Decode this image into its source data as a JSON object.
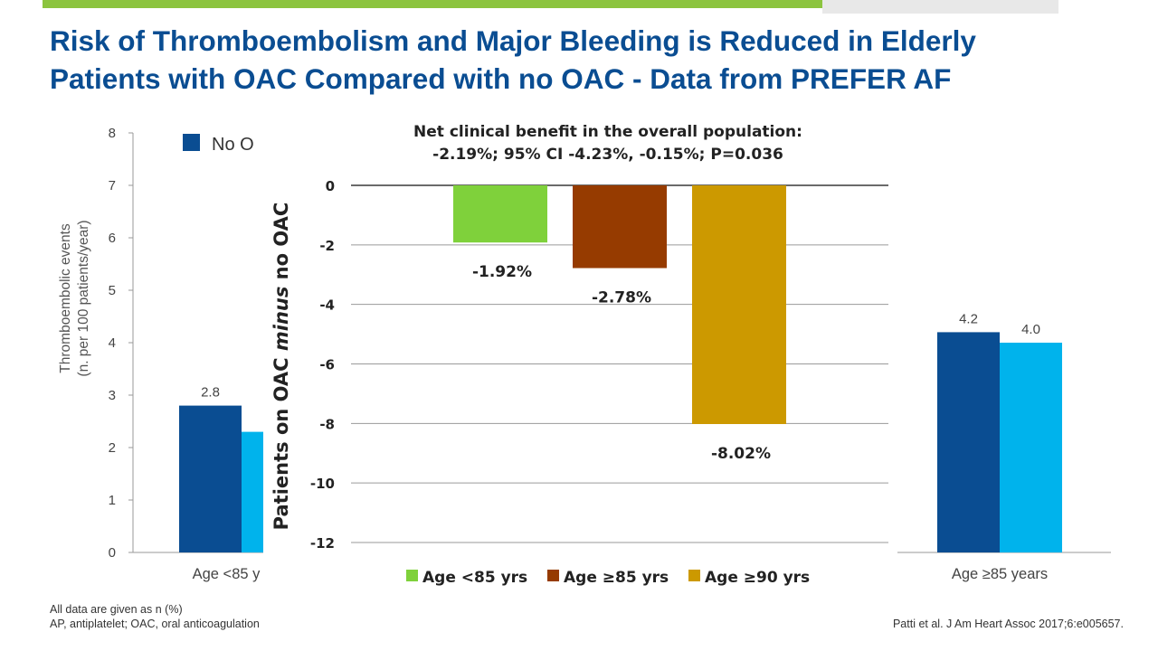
{
  "slide": {
    "title_line1": "Risk of Thromboembolism and Major Bleeding is Reduced in Elderly",
    "title_line2": "Patients with OAC Compared with no OAC - Data from PREFER AF",
    "footnote1": "All data are given as n (%)",
    "footnote2": "AP, antiplatelet; OAC, oral anticoagulation",
    "citation": "Patti et al. J Am Heart Assoc 2017;6:e005657."
  },
  "colors": {
    "title": "#0a4d92",
    "no_oac": "#0a4d92",
    "oac": "#00b3ec",
    "age_lt85": "#7fd13b",
    "age_ge85": "#963b00",
    "age_ge90": "#cc9900",
    "top_bar": "#8cc43f"
  },
  "chart_data": [
    {
      "type": "bar",
      "ylabel_line1": "Thromboembolic events",
      "ylabel_line2": "(n. per 100 patients/year)",
      "ylim": [
        0,
        8
      ],
      "yticks": [
        "0",
        "1",
        "2",
        "3",
        "4",
        "5",
        "6",
        "7",
        "8"
      ],
      "legend_visible": "No O",
      "categories": [
        "Age <85 y",
        "Age ≥85 years"
      ],
      "series": [
        {
          "values": [
            2.8,
            4.2
          ],
          "labels": [
            "2.8",
            "4.2"
          ]
        },
        {
          "values": [
            2.3,
            4.0
          ],
          "labels": [
            "",
            "4.0"
          ]
        }
      ]
    },
    {
      "type": "bar",
      "title_line1": "Net clinical benefit in the overall population:",
      "title_line2": "-2.19%; 95% CI -4.23%, -0.15%; P=0.036",
      "ylabel": "Patients on OAC minus no OAC",
      "ylabel_part1": "Patients on OAC ",
      "ylabel_part2": "minus",
      "ylabel_part3": " no OAC",
      "ylim": [
        -12,
        0
      ],
      "yticks": [
        "0",
        "-2",
        "-4",
        "-6",
        "-8",
        "-10",
        "-12"
      ],
      "grid": true,
      "categories": [
        "Age <85 yrs",
        "Age ≥85 yrs",
        "Age ≥90 yrs"
      ],
      "values": [
        -1.92,
        -2.78,
        -8.02
      ],
      "data_labels": [
        "-1.92%",
        "-2.78%",
        "-8.02%"
      ],
      "legend": "bottom"
    }
  ]
}
